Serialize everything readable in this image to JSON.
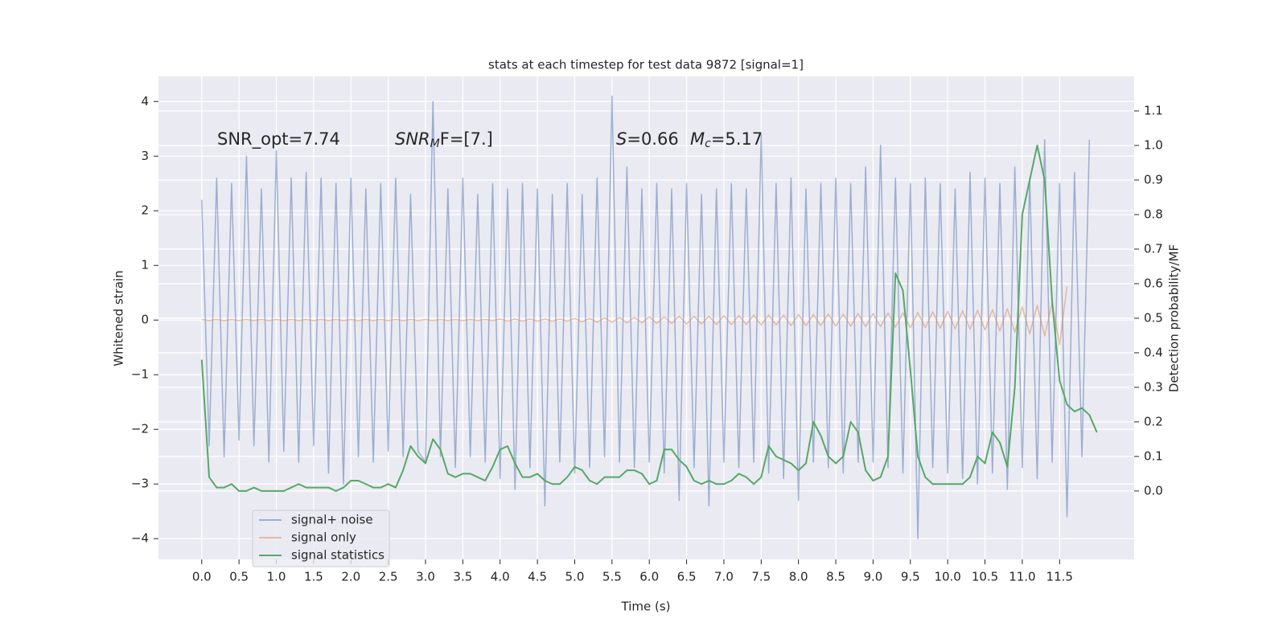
{
  "chart_data": {
    "type": "line",
    "title": "stats at each timestep for test data 9872 [signal=1]",
    "xlabel": "Time (s)",
    "ylabel": "Whitened strain",
    "y2label": "Detection probability/MF",
    "annotations": [
      {
        "parts": [
          "SNR_opt=7.74"
        ]
      },
      {
        "parts": [
          "SNR",
          "M",
          "F=[7.]"
        ]
      },
      {
        "parts": [
          "S",
          "=0.66",
          "M",
          "c",
          "=5.17"
        ]
      }
    ],
    "x": [
      0,
      0.1,
      0.2,
      0.3,
      0.4,
      0.5,
      0.6,
      0.7,
      0.8,
      0.9,
      1,
      1.1,
      1.2,
      1.3,
      1.4,
      1.5,
      1.6,
      1.7,
      1.8,
      1.9,
      2,
      2.1,
      2.2,
      2.3,
      2.4,
      2.5,
      2.6,
      2.7,
      2.8,
      2.9,
      3,
      3.1,
      3.2,
      3.3,
      3.4,
      3.5,
      3.6,
      3.7,
      3.8,
      3.9,
      4,
      4.1,
      4.2,
      4.3,
      4.4,
      4.5,
      4.6,
      4.7,
      4.8,
      4.9,
      5,
      5.1,
      5.2,
      5.3,
      5.4,
      5.5,
      5.6,
      5.7,
      5.8,
      5.9,
      6,
      6.1,
      6.2,
      6.3,
      6.4,
      6.5,
      6.6,
      6.7,
      6.8,
      6.9,
      7,
      7.1,
      7.2,
      7.3,
      7.4,
      7.5,
      7.6,
      7.7,
      7.8,
      7.9,
      8,
      8.1,
      8.2,
      8.3,
      8.4,
      8.5,
      8.6,
      8.7,
      8.8,
      8.9,
      9,
      9.1,
      9.2,
      9.3,
      9.4,
      9.5,
      9.6,
      9.7,
      9.8,
      9.9,
      10,
      10.1,
      10.2,
      10.3,
      10.4,
      10.5,
      10.6,
      10.7,
      10.8,
      10.9,
      11,
      11.1,
      11.2,
      11.3,
      11.4,
      11.5,
      11.6,
      11.7,
      11.8,
      11.9,
      12
    ],
    "series": [
      {
        "name": "signal+ noise",
        "color": "#4c72b0",
        "opacity": 0.5,
        "values": [
          2.2,
          -2.3,
          2.6,
          -2.5,
          2.5,
          -2.2,
          3.0,
          -2.3,
          2.4,
          -2.6,
          3.1,
          -2.4,
          2.6,
          -2.6,
          2.7,
          -2.3,
          2.6,
          -2.8,
          2.5,
          -3.0,
          2.6,
          -2.5,
          2.4,
          -2.6,
          2.5,
          -2.4,
          2.6,
          -2.5,
          2.3,
          -2.4,
          -2.6,
          4.0,
          -2.5,
          2.4,
          -2.7,
          2.6,
          -2.5,
          2.3,
          -2.6,
          2.5,
          -2.9,
          2.4,
          -3.1,
          2.5,
          -2.7,
          2.4,
          -3.4,
          2.3,
          -2.6,
          2.5,
          -2.8,
          2.3,
          -2.7,
          2.6,
          -2.5,
          4.1,
          -2.6,
          2.8,
          -2.7,
          2.4,
          -2.6,
          2.5,
          -2.8,
          2.4,
          -3.3,
          2.5,
          -2.7,
          2.3,
          -3.4,
          2.4,
          -2.6,
          2.5,
          -2.7,
          2.4,
          -2.6,
          3.4,
          -2.8,
          2.5,
          -2.9,
          2.6,
          -3.3,
          2.4,
          -2.6,
          2.5,
          -2.7,
          2.6,
          -2.8,
          2.5,
          -2.6,
          2.8,
          -2.6,
          3.2,
          -2.7,
          2.6,
          -2.8,
          2.5,
          -4.0,
          2.6,
          -2.7,
          2.5,
          -2.8,
          2.4,
          -2.9,
          2.7,
          -3.0,
          2.6,
          -2.8,
          2.5,
          -3.1,
          2.8,
          -2.7,
          2.6,
          -2.9,
          3.3,
          -2.6,
          2.5,
          -3.6,
          2.7,
          -2.5,
          3.3,
          null
        ]
      },
      {
        "name": "signal only",
        "color": "#dd8452",
        "opacity": 0.5,
        "values": [
          0.01,
          -0.01,
          0.01,
          -0.01,
          0.01,
          -0.01,
          0.01,
          -0.01,
          0.01,
          -0.01,
          0.01,
          -0.01,
          0.01,
          -0.01,
          0.01,
          -0.01,
          0.01,
          -0.01,
          0.01,
          -0.01,
          0.01,
          -0.01,
          0.01,
          -0.01,
          0.01,
          -0.01,
          0.01,
          -0.01,
          0.01,
          -0.01,
          0.01,
          -0.01,
          0.01,
          -0.01,
          0.01,
          -0.01,
          0.01,
          -0.01,
          0.01,
          -0.01,
          0.02,
          -0.02,
          0.02,
          -0.02,
          0.02,
          -0.02,
          0.02,
          -0.02,
          0.02,
          -0.02,
          0.03,
          -0.03,
          0.03,
          -0.04,
          0.04,
          -0.04,
          0.05,
          -0.05,
          0.05,
          -0.05,
          0.06,
          -0.06,
          0.06,
          -0.06,
          0.07,
          -0.07,
          0.07,
          -0.07,
          0.07,
          -0.08,
          0.08,
          -0.08,
          0.08,
          -0.08,
          0.09,
          -0.09,
          0.09,
          -0.09,
          0.09,
          -0.1,
          0.1,
          -0.1,
          0.1,
          -0.1,
          0.11,
          -0.11,
          0.11,
          -0.11,
          0.12,
          -0.12,
          0.12,
          -0.12,
          0.13,
          -0.13,
          0.13,
          -0.14,
          0.14,
          -0.14,
          0.15,
          -0.15,
          0.16,
          -0.16,
          0.17,
          -0.17,
          0.18,
          -0.18,
          0.19,
          -0.2,
          0.21,
          -0.22,
          0.24,
          -0.25,
          0.27,
          -0.29,
          0.32,
          -0.45,
          0.62,
          null,
          null,
          null,
          null
        ]
      },
      {
        "name": "signal statistics",
        "color": "#55a868",
        "opacity": 1,
        "axis": "y2",
        "values": [
          0.38,
          0.04,
          0.01,
          0.01,
          0.02,
          0.0,
          0.0,
          0.01,
          0.0,
          0.0,
          0.0,
          0.0,
          0.01,
          0.02,
          0.01,
          0.01,
          0.01,
          0.01,
          0.0,
          0.01,
          0.03,
          0.03,
          0.02,
          0.01,
          0.01,
          0.02,
          0.01,
          0.06,
          0.13,
          0.1,
          0.08,
          0.15,
          0.12,
          0.05,
          0.04,
          0.05,
          0.05,
          0.04,
          0.03,
          0.07,
          0.12,
          0.13,
          0.08,
          0.04,
          0.04,
          0.05,
          0.03,
          0.02,
          0.02,
          0.04,
          0.07,
          0.06,
          0.03,
          0.02,
          0.04,
          0.04,
          0.04,
          0.06,
          0.06,
          0.05,
          0.02,
          0.03,
          0.12,
          0.12,
          0.09,
          0.07,
          0.03,
          0.02,
          0.03,
          0.02,
          0.02,
          0.03,
          0.05,
          0.04,
          0.02,
          0.04,
          0.13,
          0.1,
          0.09,
          0.08,
          0.06,
          0.08,
          0.2,
          0.16,
          0.1,
          0.08,
          0.1,
          0.2,
          0.17,
          0.06,
          0.03,
          0.04,
          0.1,
          0.63,
          0.58,
          0.35,
          0.1,
          0.04,
          0.02,
          0.02,
          0.02,
          0.02,
          0.02,
          0.04,
          0.1,
          0.08,
          0.17,
          0.14,
          0.07,
          0.3,
          0.8,
          0.9,
          1.0,
          0.9,
          0.55,
          0.32,
          0.25,
          0.23,
          0.24,
          0.22,
          0.17
        ]
      }
    ],
    "xlim": [
      -0.58,
      12.5
    ],
    "ylim": [
      -4.38,
      4.46
    ],
    "y2lim": [
      -0.198,
      1.2
    ],
    "xticks": [
      {
        "value": 0,
        "label": "0.0"
      },
      0.5,
      {
        "value": 1,
        "label": "1.0"
      },
      1.5,
      {
        "value": 2,
        "label": "2.0"
      },
      2.5,
      {
        "value": 3,
        "label": "3.0"
      },
      3.5,
      {
        "value": 4,
        "label": "4.0"
      },
      4.5,
      {
        "value": 5,
        "label": "5.0"
      },
      5.5,
      {
        "value": 6,
        "label": "6.0"
      },
      6.5,
      {
        "value": 7,
        "label": "7.0"
      },
      7.5,
      {
        "value": 8,
        "label": "8.0"
      },
      8.5,
      {
        "value": 9,
        "label": "9.0"
      },
      9.5,
      {
        "value": 10,
        "label": "10.0"
      },
      10.5,
      {
        "value": 11,
        "label": "11.0"
      },
      11.5
    ],
    "yticks": [
      {
        "value": -4,
        "label": "−4"
      },
      {
        "value": -3,
        "label": "−3"
      },
      {
        "value": -2,
        "label": "−2"
      },
      {
        "value": -1,
        "label": "−1"
      },
      0,
      1,
      2,
      3,
      4
    ],
    "y2ticks": [
      {
        "value": 0,
        "label": "0.0"
      },
      0.1,
      0.2,
      0.3,
      0.4,
      0.5,
      0.6,
      0.7,
      0.8,
      0.9,
      {
        "value": 1,
        "label": "1.0"
      },
      1.1
    ],
    "grid": true,
    "legend": "lower left"
  }
}
